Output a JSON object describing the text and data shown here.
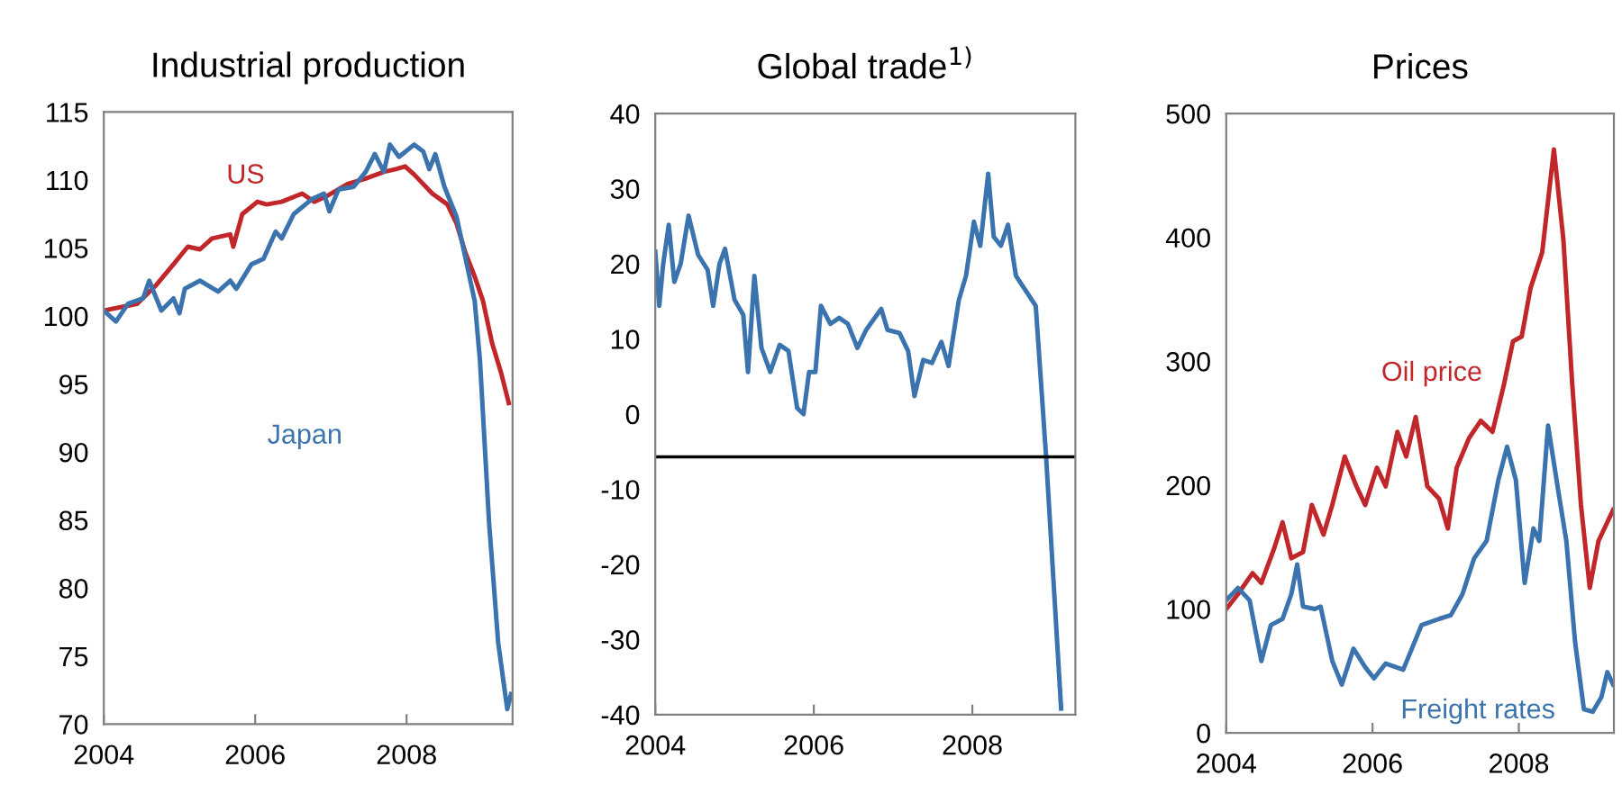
{
  "chart_data": [
    {
      "type": "line",
      "title": "Industrial production",
      "xlim": [
        2004,
        2009.4
      ],
      "xticks": [
        2004,
        2006,
        2008
      ],
      "ylim": [
        70,
        115
      ],
      "yticks": [
        70,
        75,
        80,
        85,
        90,
        95,
        100,
        105,
        110,
        115
      ],
      "grid": false,
      "legend": false,
      "series": [
        {
          "name": "US",
          "color": "#c0262a",
          "x": [
            2004.0,
            2004.44,
            2004.68,
            2004.92,
            2005.11,
            2005.27,
            2005.43,
            2005.67,
            2005.71,
            2005.83,
            2006.03,
            2006.15,
            2006.35,
            2006.62,
            2006.78,
            2006.94,
            2007.22,
            2007.46,
            2007.7,
            2007.86,
            2007.98,
            2008.1,
            2008.34,
            2008.54,
            2008.66,
            2008.78,
            2008.9,
            2009.01,
            2009.13,
            2009.25,
            2009.35
          ],
          "values": [
            100.4,
            100.9,
            102.2,
            103.8,
            105.1,
            104.9,
            105.7,
            106.0,
            105.1,
            107.5,
            108.4,
            108.2,
            108.4,
            109.0,
            108.4,
            108.8,
            109.7,
            110.1,
            110.6,
            110.8,
            111.0,
            110.4,
            109.0,
            108.2,
            106.8,
            104.6,
            102.9,
            101.1,
            98.0,
            95.8,
            93.6
          ]
        },
        {
          "name": "Japan",
          "color": "#3a73ad",
          "x": [
            2004.0,
            2004.16,
            2004.32,
            2004.52,
            2004.6,
            2004.76,
            2004.92,
            2005.0,
            2005.07,
            2005.27,
            2005.51,
            2005.67,
            2005.75,
            2005.95,
            2006.11,
            2006.27,
            2006.35,
            2006.51,
            2006.75,
            2006.91,
            2006.98,
            2007.1,
            2007.3,
            2007.46,
            2007.58,
            2007.7,
            2007.78,
            2007.9,
            2008.1,
            2008.22,
            2008.3,
            2008.38,
            2008.5,
            2008.66,
            2008.78,
            2008.9,
            2008.97,
            2009.09,
            2009.21,
            2009.33,
            2009.38
          ],
          "values": [
            100.4,
            99.6,
            100.9,
            101.3,
            102.6,
            100.4,
            101.3,
            100.2,
            102.0,
            102.6,
            101.8,
            102.6,
            102.0,
            103.8,
            104.2,
            106.2,
            105.7,
            107.5,
            108.6,
            109.0,
            107.7,
            109.3,
            109.5,
            110.6,
            111.9,
            110.6,
            112.6,
            111.7,
            112.6,
            112.1,
            110.8,
            111.9,
            109.5,
            107.3,
            104.2,
            101.1,
            96.7,
            84.8,
            76.0,
            71.1,
            72.2
          ]
        }
      ]
    },
    {
      "type": "line",
      "title": "Global trade$^{1)}$",
      "xlim": [
        2004,
        2009.3
      ],
      "xticks": [
        2004,
        2006,
        2008
      ],
      "ylim": [
        -40,
        40
      ],
      "yticks": [
        -40,
        -30,
        -20,
        -10,
        0,
        10,
        20,
        30,
        40
      ],
      "grid": false,
      "legend": false,
      "ref_lines": [
        {
          "axis": "y",
          "value": -5.7,
          "color": "#000000"
        }
      ],
      "series": [
        {
          "color": "#3a73ad",
          "x": [
            2004.0,
            2004.05,
            2004.1,
            2004.17,
            2004.24,
            2004.32,
            2004.42,
            2004.54,
            2004.66,
            2004.73,
            2004.81,
            2004.88,
            2005.0,
            2005.11,
            2005.17,
            2005.25,
            2005.34,
            2005.45,
            2005.57,
            2005.68,
            2005.79,
            2005.87,
            2005.94,
            2006.02,
            2006.09,
            2006.21,
            2006.32,
            2006.43,
            2006.55,
            2006.66,
            2006.85,
            2006.93,
            2007.08,
            2007.19,
            2007.27,
            2007.38,
            2007.49,
            2007.61,
            2007.7,
            2007.83,
            2007.92,
            2008.02,
            2008.1,
            2008.2,
            2008.27,
            2008.36,
            2008.45,
            2008.55,
            2008.7,
            2008.8,
            2008.93,
            2009.12
          ],
          "values": [
            21.6,
            14.4,
            20,
            25.2,
            17.6,
            20,
            26.4,
            21.2,
            19.2,
            14.4,
            20,
            22,
            15.2,
            13.2,
            5.6,
            18.4,
            8.8,
            5.6,
            9.2,
            8.4,
            0.8,
            0,
            5.6,
            5.6,
            14.4,
            12,
            12.8,
            12,
            8.8,
            11.2,
            14,
            11.2,
            10.8,
            8.4,
            2.4,
            7.2,
            6.8,
            9.6,
            6.4,
            15.2,
            18.4,
            25.6,
            22.4,
            32,
            23.6,
            22.4,
            25.2,
            18.4,
            16,
            14.4,
            -5.6,
            -39.2
          ]
        }
      ]
    },
    {
      "type": "line",
      "title": "Prices",
      "xlim": [
        2004,
        2009.3
      ],
      "xticks": [
        2004,
        2006,
        2008
      ],
      "ylim": [
        0,
        500
      ],
      "yticks": [
        0,
        100,
        200,
        300,
        400,
        500
      ],
      "grid": false,
      "legend": false,
      "series": [
        {
          "name": "Oil price",
          "color": "#c0262a",
          "x": [
            2004.0,
            2004.16,
            2004.36,
            2004.48,
            2004.65,
            2004.77,
            2004.89,
            2005.05,
            2005.17,
            2005.33,
            2005.45,
            2005.62,
            2005.78,
            2005.9,
            2006.06,
            2006.18,
            2006.34,
            2006.46,
            2006.59,
            2006.75,
            2006.91,
            2007.03,
            2007.15,
            2007.32,
            2007.48,
            2007.64,
            2007.8,
            2007.92,
            2008.04,
            2008.16,
            2008.32,
            2008.48,
            2008.61,
            2008.73,
            2008.85,
            2008.97,
            2009.09,
            2009.29
          ],
          "values": [
            100,
            112,
            129,
            121,
            148,
            170,
            141,
            146,
            184,
            160,
            184,
            223,
            199,
            184,
            214,
            199,
            243,
            223,
            255,
            199,
            189,
            165,
            214,
            238,
            252,
            243,
            282,
            316,
            320,
            359,
            388,
            471,
            398,
            282,
            184,
            117,
            155,
            180
          ]
        },
        {
          "name": "Freight rates",
          "color": "#3a73ad",
          "x": [
            2004.0,
            2004.16,
            2004.32,
            2004.48,
            2004.61,
            2004.77,
            2004.89,
            2004.97,
            2005.05,
            2005.21,
            2005.29,
            2005.45,
            2005.58,
            2005.74,
            2005.9,
            2006.02,
            2006.18,
            2006.42,
            2006.67,
            2006.91,
            2007.07,
            2007.23,
            2007.39,
            2007.56,
            2007.72,
            2007.84,
            2007.96,
            2008.08,
            2008.2,
            2008.28,
            2008.4,
            2008.53,
            2008.65,
            2008.77,
            2008.89,
            2009.01,
            2009.13,
            2009.21,
            2009.29
          ],
          "values": [
            107,
            117,
            107,
            58,
            87,
            92,
            112,
            136,
            102,
            100,
            102,
            58,
            39,
            68,
            53,
            44,
            56,
            51,
            87,
            92,
            95,
            112,
            141,
            155,
            204,
            231,
            204,
            121,
            165,
            155,
            248,
            199,
            155,
            73,
            19,
            17,
            29,
            49,
            39
          ]
        }
      ]
    }
  ]
}
